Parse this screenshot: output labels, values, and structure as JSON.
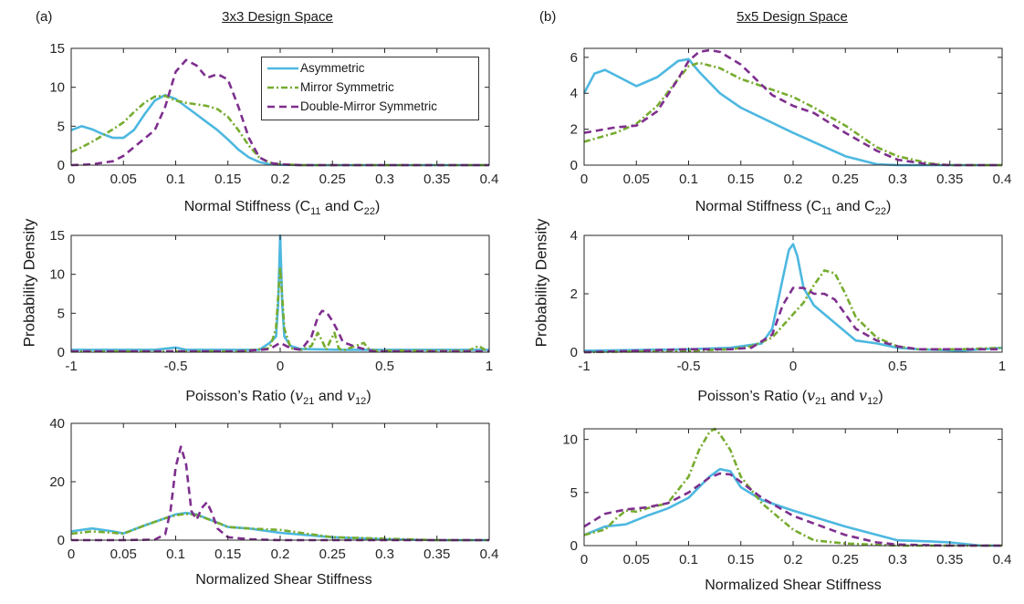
{
  "figure": {
    "panel_a": "(a)",
    "panel_b": "(b)",
    "title_a": "3x3 Design Space",
    "title_b": "5x5 Design Space",
    "ylabel_a": "Probability Density",
    "ylabel_b": "Probability Density",
    "xlabels": {
      "normal_a": {
        "pre": "Normal Stiffness (C",
        "s1": "11",
        "mid": " and C",
        "s2": "22",
        "post": ")"
      },
      "normal_b": {
        "pre": "Normal Stiffness (C",
        "s1": "11",
        "mid": " and C",
        "s2": "22",
        "post": ")"
      },
      "poisson_a": {
        "pre": "Poisson’s Ratio (",
        "v1": "v",
        "s1": "21",
        "mid": " and ",
        "v2": "v",
        "s2": "12",
        "post": ")"
      },
      "poisson_b": {
        "pre": "Poisson’s Ratio (",
        "v1": "v",
        "s1": "21",
        "mid": " and ",
        "v2": "v",
        "s2": "12",
        "post": ")"
      },
      "shear_a": "Normalized Shear Stiffness",
      "shear_b": "Normalized Shear Stiffness"
    },
    "legend": [
      {
        "name": "Asymmetric",
        "color": "#4db8e0",
        "style": "solid"
      },
      {
        "name": "Mirror Symmetric",
        "color": "#77ac30",
        "style": "dashdot"
      },
      {
        "name": "Double-Mirror Symmetric",
        "color": "#7e2f8e",
        "style": "dashed"
      }
    ]
  },
  "chart_data": [
    {
      "id": "a1",
      "type": "line",
      "xlim": [
        0,
        0.4
      ],
      "ylim": [
        0,
        15
      ],
      "xticks": [
        "0",
        "0.05",
        "0.1",
        "0.15",
        "0.2",
        "0.25",
        "0.3",
        "0.35",
        "0.4"
      ],
      "yticks": [
        "0",
        "5",
        "10",
        "15"
      ],
      "xlabel": "Normal Stiffness (C11 and C22)",
      "series": [
        {
          "name": "Asymmetric",
          "x": [
            0,
            0.01,
            0.02,
            0.03,
            0.04,
            0.05,
            0.06,
            0.07,
            0.08,
            0.09,
            0.1,
            0.11,
            0.12,
            0.13,
            0.14,
            0.15,
            0.16,
            0.17,
            0.18,
            0.19,
            0.2,
            0.22,
            0.25,
            0.3,
            0.35,
            0.4
          ],
          "y": [
            4.5,
            5,
            4.6,
            4,
            3.5,
            3.5,
            4.5,
            6.5,
            8.3,
            9,
            8.5,
            7.5,
            6.5,
            5.5,
            4.5,
            3.3,
            2,
            1,
            0.4,
            0.1,
            0.05,
            0,
            0,
            0,
            0,
            0
          ]
        },
        {
          "name": "Mirror Symmetric",
          "x": [
            0,
            0.01,
            0.02,
            0.03,
            0.04,
            0.05,
            0.06,
            0.07,
            0.08,
            0.09,
            0.1,
            0.11,
            0.12,
            0.13,
            0.14,
            0.15,
            0.16,
            0.17,
            0.18,
            0.19,
            0.2,
            0.22,
            0.25,
            0.3,
            0.35,
            0.4
          ],
          "y": [
            1.7,
            2.3,
            3,
            3.8,
            4.6,
            5.5,
            6.8,
            8,
            8.8,
            8.9,
            8.3,
            8,
            7.8,
            7.6,
            7.2,
            6.2,
            4.5,
            2.5,
            1,
            0.3,
            0.1,
            0,
            0,
            0,
            0,
            0
          ]
        },
        {
          "name": "Double-Mirror Symmetric",
          "x": [
            0,
            0.02,
            0.04,
            0.05,
            0.06,
            0.07,
            0.08,
            0.09,
            0.1,
            0.11,
            0.12,
            0.13,
            0.14,
            0.15,
            0.16,
            0.17,
            0.18,
            0.19,
            0.2,
            0.22,
            0.25,
            0.3,
            0.35,
            0.4
          ],
          "y": [
            0,
            0.1,
            0.5,
            1.2,
            2.3,
            3.4,
            4.5,
            7.5,
            12,
            13.5,
            12.8,
            11.2,
            11.7,
            11,
            7.5,
            3.5,
            1,
            0.3,
            0.1,
            0,
            0,
            0,
            0,
            0
          ]
        }
      ]
    },
    {
      "id": "a2",
      "type": "line",
      "xlim": [
        -1,
        1
      ],
      "ylim": [
        0,
        15
      ],
      "xticks": [
        "-1",
        "-0.5",
        "0",
        "0.5",
        "1"
      ],
      "yticks": [
        "0",
        "5",
        "10",
        "15"
      ],
      "xlabel": "Poisson’s Ratio (v21 and v12)",
      "series": [
        {
          "name": "Asymmetric",
          "x": [
            -1,
            -0.6,
            -0.5,
            -0.45,
            -0.1,
            -0.05,
            -0.02,
            -0.01,
            0,
            0.01,
            0.02,
            0.05,
            0.1,
            0.3,
            0.5,
            0.8,
            1
          ],
          "y": [
            0.3,
            0.3,
            0.6,
            0.3,
            0.3,
            1.2,
            2,
            6,
            15,
            6,
            2,
            0.8,
            0.4,
            0.3,
            0.3,
            0.3,
            0.3
          ]
        },
        {
          "name": "Mirror Symmetric",
          "x": [
            -1,
            -0.2,
            -0.05,
            -0.02,
            0,
            0.02,
            0.05,
            0.1,
            0.15,
            0.18,
            0.2,
            0.22,
            0.24,
            0.26,
            0.28,
            0.3,
            0.4,
            0.42,
            0.45,
            0.5,
            0.9,
            0.95,
            0.98,
            1
          ],
          "y": [
            0.1,
            0.1,
            0.5,
            3,
            11,
            3,
            0.5,
            0.3,
            0.8,
            2.5,
            1.5,
            0.3,
            1.5,
            2.5,
            0.5,
            0.2,
            1.2,
            0.5,
            0.2,
            0.2,
            0.2,
            0.8,
            0.3,
            0.2
          ]
        },
        {
          "name": "Double-Mirror Symmetric",
          "x": [
            -1,
            -0.2,
            -0.05,
            0,
            0.05,
            0.1,
            0.15,
            0.18,
            0.2,
            0.22,
            0.25,
            0.28,
            0.3,
            0.35,
            0.4,
            0.45,
            0.5,
            1
          ],
          "y": [
            0.1,
            0.1,
            0.4,
            1.2,
            0.5,
            0.3,
            2,
            4.5,
            5.3,
            5.2,
            4,
            2.5,
            1.3,
            0.8,
            0.4,
            0.1,
            0.1,
            0.1
          ]
        }
      ]
    },
    {
      "id": "a3",
      "type": "line",
      "xlim": [
        0,
        0.4
      ],
      "ylim": [
        0,
        40
      ],
      "xticks": [
        "0",
        "0.05",
        "0.1",
        "0.15",
        "0.2",
        "0.25",
        "0.3",
        "0.35",
        "0.4"
      ],
      "yticks": [
        "0",
        "20",
        "40"
      ],
      "xlabel": "Normalized Shear Stiffness",
      "series": [
        {
          "name": "Asymmetric",
          "x": [
            0,
            0.02,
            0.04,
            0.05,
            0.07,
            0.09,
            0.1,
            0.11,
            0.12,
            0.14,
            0.15,
            0.17,
            0.2,
            0.25,
            0.3,
            0.35,
            0.4
          ],
          "y": [
            3,
            4,
            3,
            2.3,
            5,
            7.5,
            8.8,
            9.3,
            8.8,
            6,
            4.5,
            4,
            2.5,
            1,
            0.3,
            0,
            0
          ]
        },
        {
          "name": "Mirror Symmetric",
          "x": [
            0,
            0.02,
            0.04,
            0.05,
            0.07,
            0.09,
            0.1,
            0.11,
            0.12,
            0.14,
            0.15,
            0.17,
            0.2,
            0.23,
            0.25,
            0.3,
            0.35,
            0.4
          ],
          "y": [
            2.2,
            3,
            2.5,
            2.2,
            5,
            7.5,
            8.5,
            9,
            8.6,
            6,
            4.5,
            4,
            3.5,
            2,
            1,
            0.5,
            0,
            0
          ]
        },
        {
          "name": "Double-Mirror Symmetric",
          "x": [
            0,
            0.05,
            0.08,
            0.09,
            0.095,
            0.1,
            0.105,
            0.11,
            0.115,
            0.12,
            0.125,
            0.13,
            0.135,
            0.14,
            0.15,
            0.17,
            0.2,
            0.25,
            0.3,
            0.35,
            0.4
          ],
          "y": [
            0,
            0,
            0.2,
            2,
            10,
            25,
            32,
            26,
            10,
            7,
            11,
            13,
            9,
            4,
            1,
            0.3,
            0,
            0,
            0,
            0,
            0
          ]
        }
      ]
    },
    {
      "id": "b1",
      "type": "line",
      "xlim": [
        0,
        0.4
      ],
      "ylim": [
        0,
        6.5
      ],
      "xticks": [
        "0",
        "0.05",
        "0.1",
        "0.15",
        "0.2",
        "0.25",
        "0.3",
        "0.35",
        "0.4"
      ],
      "yticks": [
        "0",
        "2",
        "4",
        "6"
      ],
      "xlabel": "Normal Stiffness (C11 and C22)",
      "series": [
        {
          "name": "Asymmetric",
          "x": [
            0,
            0.01,
            0.02,
            0.03,
            0.05,
            0.07,
            0.09,
            0.1,
            0.11,
            0.13,
            0.15,
            0.2,
            0.25,
            0.28,
            0.3,
            0.35,
            0.4
          ],
          "y": [
            4,
            5.1,
            5.3,
            5,
            4.4,
            4.9,
            5.8,
            5.9,
            5.2,
            4,
            3.2,
            1.8,
            0.5,
            0.05,
            0,
            0,
            0
          ]
        },
        {
          "name": "Mirror Symmetric",
          "x": [
            0,
            0.03,
            0.05,
            0.07,
            0.09,
            0.1,
            0.11,
            0.13,
            0.15,
            0.18,
            0.2,
            0.22,
            0.25,
            0.28,
            0.3,
            0.33,
            0.35,
            0.4
          ],
          "y": [
            1.3,
            1.8,
            2.3,
            3.3,
            4.8,
            5.5,
            5.7,
            5.4,
            4.8,
            4.2,
            3.8,
            3.2,
            2.2,
            1,
            0.5,
            0.1,
            0,
            0
          ]
        },
        {
          "name": "Double-Mirror Symmetric",
          "x": [
            0,
            0.03,
            0.05,
            0.07,
            0.09,
            0.1,
            0.11,
            0.12,
            0.13,
            0.15,
            0.18,
            0.2,
            0.22,
            0.25,
            0.28,
            0.3,
            0.33,
            0.35,
            0.4
          ],
          "y": [
            1.8,
            2.1,
            2.2,
            3,
            4.8,
            5.8,
            6.3,
            6.4,
            6.3,
            5.6,
            3.9,
            3.3,
            2.9,
            1.8,
            0.8,
            0.3,
            0.05,
            0,
            0
          ]
        }
      ]
    },
    {
      "id": "b2",
      "type": "line",
      "xlim": [
        -1,
        1
      ],
      "ylim": [
        0,
        4
      ],
      "xticks": [
        "-1",
        "-0.5",
        "0",
        "0.5",
        "1"
      ],
      "yticks": [
        "0",
        "2",
        "4"
      ],
      "xlabel": "Poisson’s Ratio (v21 and v12)",
      "series": [
        {
          "name": "Asymmetric",
          "x": [
            -1,
            -0.5,
            -0.3,
            -0.15,
            -0.1,
            -0.05,
            -0.02,
            0,
            0.02,
            0.05,
            0.1,
            0.2,
            0.3,
            0.4,
            0.5,
            0.6,
            0.8,
            1
          ],
          "y": [
            0.05,
            0.1,
            0.15,
            0.3,
            0.8,
            2.5,
            3.5,
            3.7,
            3.3,
            2.2,
            1.6,
            1,
            0.4,
            0.3,
            0.15,
            0.1,
            0.05,
            0.15
          ]
        },
        {
          "name": "Mirror Symmetric",
          "x": [
            -1,
            -0.5,
            -0.3,
            -0.2,
            -0.1,
            0,
            0.05,
            0.1,
            0.15,
            0.2,
            0.25,
            0.3,
            0.4,
            0.5,
            0.6,
            0.8,
            1
          ],
          "y": [
            0,
            0.05,
            0.1,
            0.2,
            0.5,
            1.3,
            1.7,
            2.3,
            2.8,
            2.7,
            2,
            1.2,
            0.5,
            0.2,
            0.1,
            0.1,
            0.15
          ]
        },
        {
          "name": "Double-Mirror Symmetric",
          "x": [
            -1,
            -0.5,
            -0.3,
            -0.2,
            -0.1,
            -0.05,
            0,
            0.05,
            0.1,
            0.15,
            0.2,
            0.25,
            0.3,
            0.4,
            0.5,
            0.6,
            0.8,
            1
          ],
          "y": [
            0,
            0.1,
            0.1,
            0.15,
            0.6,
            1.6,
            2.2,
            2.2,
            2,
            2,
            1.8,
            1.3,
            0.8,
            0.4,
            0.2,
            0.1,
            0.1,
            0.1
          ]
        }
      ]
    },
    {
      "id": "b3",
      "type": "line",
      "xlim": [
        0,
        0.4
      ],
      "ylim": [
        0,
        11
      ],
      "xticks": [
        "0",
        "0.05",
        "0.1",
        "0.15",
        "0.2",
        "0.25",
        "0.3",
        "0.35",
        "0.4"
      ],
      "yticks": [
        "0",
        "5",
        "10"
      ],
      "xlabel": "Normalized Shear Stiffness",
      "series": [
        {
          "name": "Asymmetric",
          "x": [
            0,
            0.02,
            0.04,
            0.06,
            0.08,
            0.1,
            0.12,
            0.13,
            0.14,
            0.15,
            0.17,
            0.2,
            0.25,
            0.3,
            0.33,
            0.35,
            0.38,
            0.4
          ],
          "y": [
            1,
            1.8,
            2,
            2.8,
            3.5,
            4.5,
            6.5,
            7.2,
            7,
            5.5,
            4.3,
            3.3,
            1.8,
            0.5,
            0.4,
            0.3,
            0,
            0
          ]
        },
        {
          "name": "Mirror Symmetric",
          "x": [
            0,
            0.02,
            0.03,
            0.04,
            0.05,
            0.06,
            0.08,
            0.1,
            0.11,
            0.12,
            0.125,
            0.13,
            0.14,
            0.15,
            0.17,
            0.2,
            0.22,
            0.25,
            0.3,
            0.35,
            0.4
          ],
          "y": [
            1,
            1.5,
            2.5,
            3.3,
            3.2,
            3.5,
            4,
            6.5,
            9,
            10.7,
            11,
            10.5,
            9,
            6.5,
            4,
            1.5,
            0.5,
            0.2,
            0,
            0,
            0
          ]
        },
        {
          "name": "Double-Mirror Symmetric",
          "x": [
            0,
            0.02,
            0.04,
            0.06,
            0.08,
            0.1,
            0.12,
            0.13,
            0.14,
            0.15,
            0.17,
            0.2,
            0.25,
            0.28,
            0.3,
            0.35,
            0.4
          ],
          "y": [
            1.8,
            3,
            3.4,
            3.6,
            4,
            5,
            6.4,
            6.8,
            6.7,
            6,
            4.5,
            2.8,
            1,
            0.3,
            0.1,
            0,
            0
          ]
        }
      ]
    }
  ]
}
